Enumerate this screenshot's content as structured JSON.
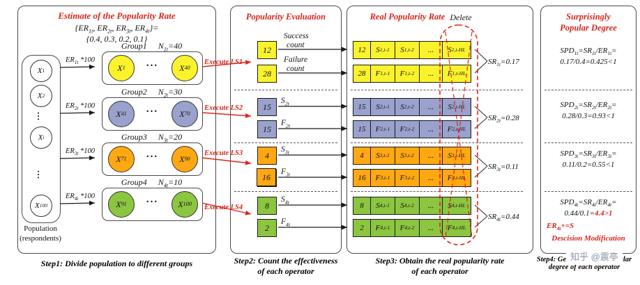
{
  "watermark": "知乎 @震亭",
  "ellipsis": "...",
  "vellipsis": "…",
  "colors": {
    "g1": "#faf32c",
    "g2": "#99a1cc",
    "g3": "#ffa812",
    "g4": "#8cc540",
    "red": "#d6251c"
  },
  "panel1": {
    "title": "Estimate of the Popularity Rate",
    "formula1": [
      {
        "t": "{ER"
      },
      {
        "s": "1t"
      },
      {
        "t": ", ER"
      },
      {
        "s": "2t"
      },
      {
        "t": ", ER"
      },
      {
        "s": "3t"
      },
      {
        "t": ", ER"
      },
      {
        "s": "4t"
      },
      {
        "t": "}="
      }
    ],
    "formula2": "{0.4, 0.3, 0.2, 0.1}",
    "population": {
      "nodes": [
        [
          {
            "t": "X"
          },
          {
            "s": "1"
          }
        ],
        [
          {
            "t": "X"
          },
          {
            "s": "2"
          }
        ],
        [
          {
            "t": "X"
          },
          {
            "s": "i"
          }
        ],
        [
          {
            "t": "X"
          },
          {
            "s": "100"
          }
        ]
      ],
      "label1": "Population",
      "label2": "(respondents)"
    },
    "groups": [
      {
        "name": "Group1",
        "size": [
          {
            "t": "N"
          },
          {
            "s": "1t"
          },
          {
            "t": "=40"
          }
        ],
        "first": [
          {
            "t": "X"
          },
          {
            "s": "1"
          }
        ],
        "last": [
          {
            "t": "X"
          },
          {
            "s": "40"
          }
        ],
        "er": [
          {
            "t": "ER"
          },
          {
            "s": "1t"
          },
          {
            "t": " *100"
          }
        ]
      },
      {
        "name": "Group2",
        "size": [
          {
            "t": "N"
          },
          {
            "s": "2t"
          },
          {
            "t": "=30"
          }
        ],
        "first": [
          {
            "t": "X"
          },
          {
            "s": "41"
          }
        ],
        "last": [
          {
            "t": "X"
          },
          {
            "s": "70"
          }
        ],
        "er": [
          {
            "t": "ER"
          },
          {
            "s": "2t"
          },
          {
            "t": " *100"
          }
        ]
      },
      {
        "name": "Group3",
        "size": [
          {
            "t": "N"
          },
          {
            "s": "3t"
          },
          {
            "t": "=20"
          }
        ],
        "first": [
          {
            "t": "X"
          },
          {
            "s": "71"
          }
        ],
        "last": [
          {
            "t": "X"
          },
          {
            "s": "90"
          }
        ],
        "er": [
          {
            "t": "ER"
          },
          {
            "s": "3t"
          },
          {
            "t": " *100"
          }
        ]
      },
      {
        "name": "Group4",
        "size": [
          {
            "t": "N"
          },
          {
            "s": "4t"
          },
          {
            "t": "=10"
          }
        ],
        "first": [
          {
            "t": "X"
          },
          {
            "s": "91"
          }
        ],
        "last": [
          {
            "t": "X"
          },
          {
            "s": "100"
          }
        ],
        "er": [
          {
            "t": "ER"
          },
          {
            "s": "4t"
          },
          {
            "t": " *100"
          }
        ]
      }
    ],
    "caption": "Step1: Divide population to different groups"
  },
  "panel2": {
    "title": "Popularity Evaluation",
    "execute": [
      "Execute LS1",
      "Execute LS2",
      "Execute LS3",
      "Execute LS4"
    ],
    "groups": [
      {
        "s_value": "12",
        "f_value": "28",
        "s_lines": [
          "Success",
          "count"
        ],
        "f_lines": [
          "Failure",
          "count"
        ]
      },
      {
        "s_value": "15",
        "f_value": "15",
        "s_tag": [
          {
            "t": "S"
          },
          {
            "s": "2t"
          }
        ],
        "f_tag": [
          {
            "t": "F"
          },
          {
            "s": "2t"
          }
        ]
      },
      {
        "s_value": "4",
        "f_value": "16",
        "s_tag": [
          {
            "t": "S"
          },
          {
            "s": "3t"
          }
        ],
        "f_tag": [
          {
            "t": "F"
          },
          {
            "s": "3t"
          }
        ]
      },
      {
        "s_value": "8",
        "f_value": "2",
        "s_tag": [
          {
            "t": "S"
          },
          {
            "s": "4t"
          }
        ],
        "f_tag": [
          {
            "t": "F"
          },
          {
            "s": "4t"
          }
        ]
      }
    ],
    "caption1": "Step2: Count the effectiveness",
    "caption2": "of each operator"
  },
  "panel3": {
    "title": "Real Popularity Rate",
    "delete_label": "Delete",
    "dots": "...",
    "groups": [
      {
        "s_value": "12",
        "s_cells": [
          [
            {
              "t": "S"
            },
            {
              "s": "1,t-1"
            }
          ],
          [
            {
              "t": "S"
            },
            {
              "s": "1,t-2"
            }
          ],
          [
            {
              "t": "S"
            },
            {
              "s": "1,t-HL"
            }
          ]
        ],
        "f_value": "28",
        "f_cells": [
          [
            {
              "t": "F"
            },
            {
              "s": "1,t-1"
            }
          ],
          [
            {
              "t": "F"
            },
            {
              "s": "1,t-2"
            }
          ],
          [
            {
              "t": "F"
            },
            {
              "s": "1,t-HL"
            }
          ]
        ],
        "sr": [
          {
            "t": "SR"
          },
          {
            "s": "1t"
          },
          {
            "t": "=0.17"
          }
        ]
      },
      {
        "s_value": "15",
        "s_cells": [
          [
            {
              "t": "S"
            },
            {
              "s": "2,t-1"
            }
          ],
          [
            {
              "t": "S"
            },
            {
              "s": "2,t-2"
            }
          ],
          [
            {
              "t": "S"
            },
            {
              "s": "2,t-HL"
            }
          ]
        ],
        "f_value": "15",
        "f_cells": [
          [
            {
              "t": "F"
            },
            {
              "s": "2,t-1"
            }
          ],
          [
            {
              "t": "F"
            },
            {
              "s": "2,t-2"
            }
          ],
          [
            {
              "t": "F"
            },
            {
              "s": "2,t-HL"
            }
          ]
        ],
        "sr": [
          {
            "t": "SR"
          },
          {
            "s": "2t"
          },
          {
            "t": "=0.28"
          }
        ]
      },
      {
        "s_value": "4",
        "s_cells": [
          [
            {
              "t": "S"
            },
            {
              "s": "3,t-1"
            }
          ],
          [
            {
              "t": "S"
            },
            {
              "s": "3,t-2"
            }
          ],
          [
            {
              "t": "S"
            },
            {
              "s": "3,t-HL"
            }
          ]
        ],
        "f_value": "16",
        "f_cells": [
          [
            {
              "t": "F"
            },
            {
              "s": "3,t-1"
            }
          ],
          [
            {
              "t": "F"
            },
            {
              "s": "3,t-2"
            }
          ],
          [
            {
              "t": "F"
            },
            {
              "s": "3,t-HL"
            }
          ]
        ],
        "sr": [
          {
            "t": "SR"
          },
          {
            "s": "3t"
          },
          {
            "t": "=0.11"
          }
        ]
      },
      {
        "s_value": "8",
        "s_cells": [
          [
            {
              "t": "S"
            },
            {
              "s": "4,t-1"
            }
          ],
          [
            {
              "t": "S"
            },
            {
              "s": "4,t-2"
            }
          ],
          [
            {
              "t": "S"
            },
            {
              "s": "4,t-HL"
            }
          ]
        ],
        "f_value": "2",
        "f_cells": [
          [
            {
              "t": "F"
            },
            {
              "s": "4,t-1"
            }
          ],
          [
            {
              "t": "F"
            },
            {
              "s": "4,t-2"
            }
          ],
          [
            {
              "t": "F"
            },
            {
              "s": "4,t-HL"
            }
          ]
        ],
        "sr": [
          {
            "t": "SR"
          },
          {
            "s": "4t"
          },
          {
            "t": "=0.44"
          }
        ]
      }
    ],
    "caption1": "Step3: Obtain the real popularity rate",
    "caption2": "of each operator"
  },
  "panel4": {
    "title1": "Surprisingly",
    "title2": "Popular Degree",
    "sections": [
      {
        "line1": [
          {
            "t": "SPD"
          },
          {
            "s": "1t"
          },
          {
            "t": "=SR"
          },
          {
            "s": "1t"
          },
          {
            "t": "/ER"
          },
          {
            "s": "1t"
          },
          {
            "t": "="
          }
        ],
        "line2": "0.17/0.4=0.425<1"
      },
      {
        "line1": [
          {
            "t": "SPD"
          },
          {
            "s": "2t"
          },
          {
            "t": "=SR"
          },
          {
            "s": "2t"
          },
          {
            "t": "/ER"
          },
          {
            "s": "2t"
          },
          {
            "t": "="
          }
        ],
        "line2": "0.28/0.3=0.93<1"
      },
      {
        "line1": [
          {
            "t": "SPD"
          },
          {
            "s": "3t"
          },
          {
            "t": "=SR"
          },
          {
            "s": "3t"
          },
          {
            "t": "/ER"
          },
          {
            "s": "3t"
          },
          {
            "t": "="
          }
        ],
        "line2": "0.11/0.2=0.55<1"
      },
      {
        "line1": [
          {
            "t": "SPD"
          },
          {
            "s": "4t"
          },
          {
            "t": "=SR"
          },
          {
            "s": "4t"
          },
          {
            "t": "/ER"
          },
          {
            "s": "4t"
          },
          {
            "t": "="
          }
        ],
        "line2_black": "0.44/0.1=",
        "line2_red": "4.4>1",
        "note1": [
          {
            "t": "ER"
          },
          {
            "s": "4t"
          },
          {
            "t": "+=S"
          }
        ],
        "note2": "Descision Modification"
      }
    ],
    "caption1": "Step4: Get surprisingly popular",
    "caption2": "degree of each operator"
  }
}
